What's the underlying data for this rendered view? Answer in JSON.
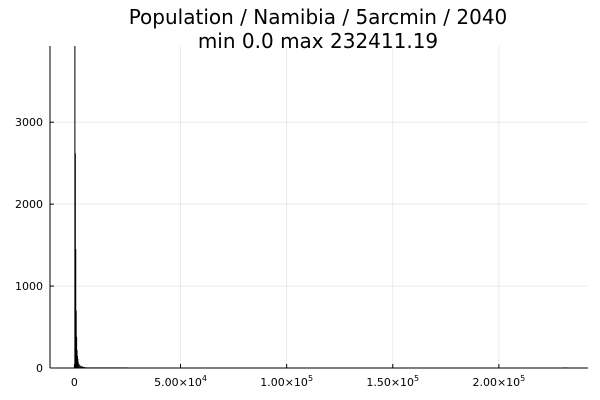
{
  "chart_data": {
    "type": "bar",
    "title_line1": "Population / Namibia / 5arcmin / 2040",
    "title_line2": "min 0.0  max 232411.19",
    "xlabel": "",
    "ylabel": "",
    "xlim": [
      -11500,
      242000
    ],
    "ylim": [
      0,
      3930
    ],
    "grid": true,
    "legend": "none",
    "bar_color": "#000000",
    "x_ticks": [
      {
        "value": 0,
        "mantissa": "0",
        "exp": ""
      },
      {
        "value": 50000,
        "mantissa": "5.00×10",
        "exp": "4"
      },
      {
        "value": 100000,
        "mantissa": "1.00×10",
        "exp": "5"
      },
      {
        "value": 150000,
        "mantissa": "1.50×10",
        "exp": "5"
      },
      {
        "value": 200000,
        "mantissa": "2.00×10",
        "exp": "5"
      }
    ],
    "y_ticks": [
      {
        "value": 0,
        "label": "0"
      },
      {
        "value": 1000,
        "label": "1000"
      },
      {
        "value": 2000,
        "label": "2000"
      },
      {
        "value": 3000,
        "label": "3000"
      }
    ],
    "bins": [
      {
        "x0": 0,
        "x1": 200,
        "count": 3930
      },
      {
        "x0": 200,
        "x1": 400,
        "count": 2620
      },
      {
        "x0": 400,
        "x1": 600,
        "count": 1450
      },
      {
        "x0": 600,
        "x1": 800,
        "count": 700
      },
      {
        "x0": 800,
        "x1": 1000,
        "count": 380
      },
      {
        "x0": 1000,
        "x1": 1200,
        "count": 220
      },
      {
        "x0": 1200,
        "x1": 1400,
        "count": 150
      },
      {
        "x0": 1400,
        "x1": 1600,
        "count": 110
      },
      {
        "x0": 1600,
        "x1": 2000,
        "count": 70
      },
      {
        "x0": 2000,
        "x1": 2500,
        "count": 45
      },
      {
        "x0": 2500,
        "x1": 3000,
        "count": 30
      },
      {
        "x0": 3000,
        "x1": 4000,
        "count": 20
      },
      {
        "x0": 4000,
        "x1": 5000,
        "count": 12
      },
      {
        "x0": 5000,
        "x1": 6500,
        "count": 8
      },
      {
        "x0": 6500,
        "x1": 8000,
        "count": 5
      },
      {
        "x0": 8000,
        "x1": 10000,
        "count": 3
      },
      {
        "x0": 10000,
        "x1": 13000,
        "count": 2
      },
      {
        "x0": 13000,
        "x1": 18000,
        "count": 1
      },
      {
        "x0": 18000,
        "x1": 25000,
        "count": 1
      },
      {
        "x0": 230000,
        "x1": 232412,
        "count": 1
      }
    ]
  }
}
